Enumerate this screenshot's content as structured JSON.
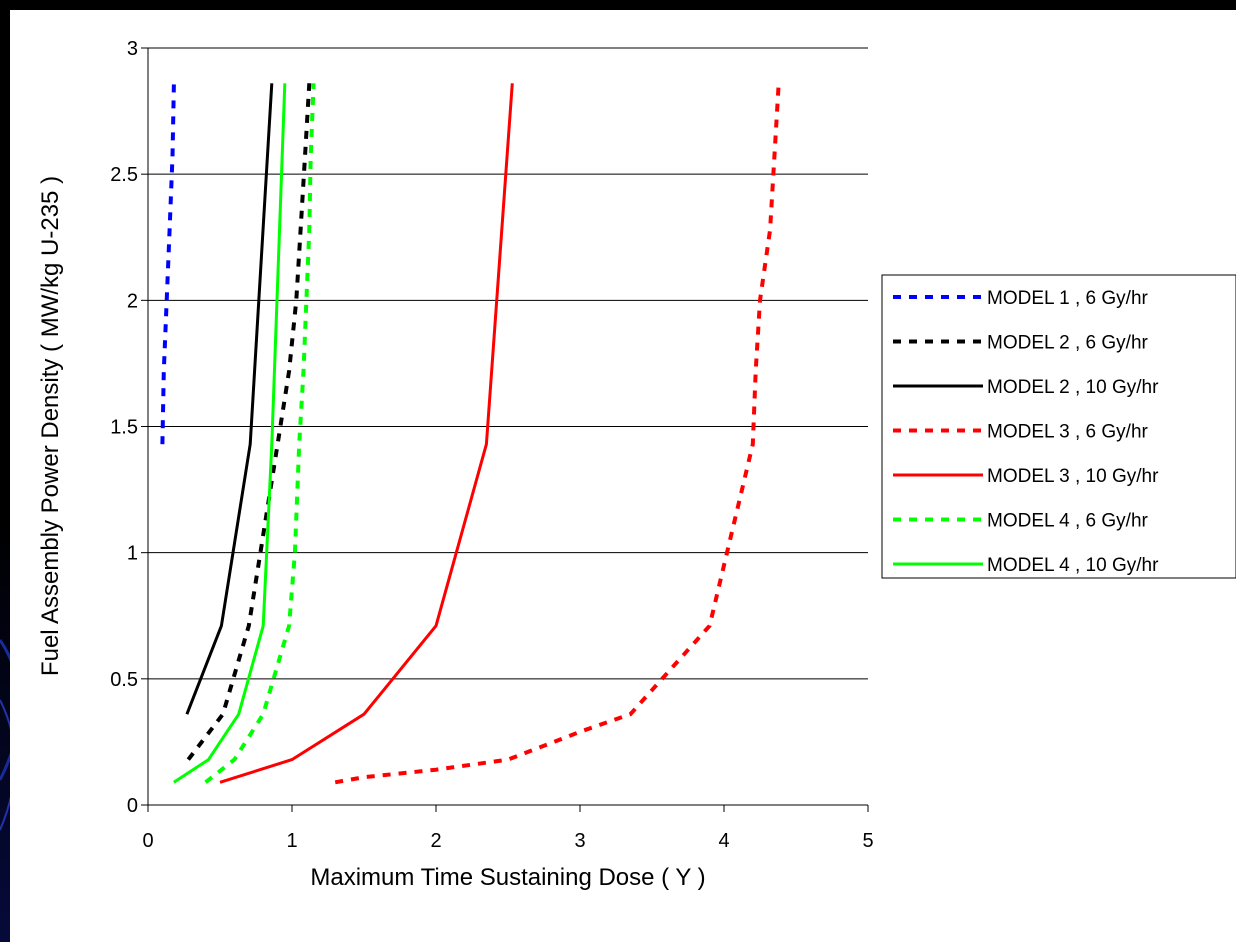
{
  "chart_data": {
    "type": "line",
    "title": "",
    "xlabel": "Maximum Time Sustaining Dose ( Y )",
    "ylabel": "Fuel Assembly Power Density ( MW/kg U-235 )",
    "xlim": [
      0,
      5
    ],
    "ylim": [
      0,
      3
    ],
    "x_ticks": [
      0,
      1,
      2,
      3,
      4,
      5
    ],
    "y_ticks": [
      0,
      0.5,
      1,
      1.5,
      2,
      2.5,
      3
    ],
    "x_tick_labels": [
      "0",
      "1",
      "2",
      "3",
      "4",
      "5"
    ],
    "y_tick_labels": [
      "0",
      "0.5",
      "1",
      "1.5",
      "2",
      "2.5",
      "3"
    ],
    "grid": "horizontal major gridlines",
    "legend_position": "right",
    "series": [
      {
        "name": "MODEL 1 , 6 Gy/hr",
        "color": "#0000ff",
        "dash": "dotted",
        "points": [
          [
            0.1,
            1.43
          ],
          [
            0.11,
            1.72
          ],
          [
            0.13,
            2.0
          ],
          [
            0.15,
            2.28
          ],
          [
            0.17,
            2.57
          ],
          [
            0.18,
            2.86
          ]
        ]
      },
      {
        "name": "MODEL 2 , 6 Gy/hr",
        "color": "#000000",
        "dash": "dotted",
        "points": [
          [
            0.28,
            0.18
          ],
          [
            0.52,
            0.36
          ],
          [
            0.7,
            0.71
          ],
          [
            0.9,
            1.43
          ],
          [
            0.98,
            1.72
          ],
          [
            1.03,
            2.0
          ],
          [
            1.06,
            2.28
          ],
          [
            1.09,
            2.57
          ],
          [
            1.12,
            2.86
          ]
        ]
      },
      {
        "name": "MODEL 2 , 10 Gy/hr",
        "color": "#000000",
        "dash": "solid",
        "points": [
          [
            0.27,
            0.36
          ],
          [
            0.51,
            0.71
          ],
          [
            0.71,
            1.43
          ],
          [
            0.86,
            2.86
          ]
        ]
      },
      {
        "name": "MODEL 3 , 6 Gy/hr",
        "color": "#ff0000",
        "dash": "dotted",
        "points": [
          [
            1.3,
            0.09
          ],
          [
            1.5,
            0.11
          ],
          [
            2.0,
            0.14
          ],
          [
            2.5,
            0.18
          ],
          [
            3.0,
            0.29
          ],
          [
            3.35,
            0.36
          ],
          [
            3.9,
            0.71
          ],
          [
            4.2,
            1.43
          ],
          [
            4.22,
            1.72
          ],
          [
            4.25,
            2.0
          ],
          [
            4.32,
            2.28
          ],
          [
            4.35,
            2.57
          ],
          [
            4.38,
            2.86
          ]
        ]
      },
      {
        "name": "MODEL 3 , 10 Gy/hr",
        "color": "#ff0000",
        "dash": "solid",
        "points": [
          [
            0.5,
            0.09
          ],
          [
            1.0,
            0.18
          ],
          [
            1.5,
            0.36
          ],
          [
            2.0,
            0.71
          ],
          [
            2.35,
            1.43
          ],
          [
            2.53,
            2.86
          ]
        ]
      },
      {
        "name": "MODEL 4 , 6 Gy/hr",
        "color": "#00ff00",
        "dash": "dotted",
        "points": [
          [
            0.4,
            0.09
          ],
          [
            0.6,
            0.18
          ],
          [
            0.8,
            0.36
          ],
          [
            0.98,
            0.71
          ],
          [
            1.02,
            1.0
          ],
          [
            1.05,
            1.43
          ],
          [
            1.08,
            1.72
          ],
          [
            1.1,
            2.0
          ],
          [
            1.12,
            2.28
          ],
          [
            1.13,
            2.57
          ],
          [
            1.15,
            2.86
          ]
        ]
      },
      {
        "name": "MODEL 4 , 10 Gy/hr",
        "color": "#00ff00",
        "dash": "solid",
        "points": [
          [
            0.18,
            0.09
          ],
          [
            0.42,
            0.18
          ],
          [
            0.63,
            0.36
          ],
          [
            0.8,
            0.71
          ],
          [
            0.86,
            1.43
          ],
          [
            0.95,
            2.86
          ]
        ]
      }
    ]
  }
}
